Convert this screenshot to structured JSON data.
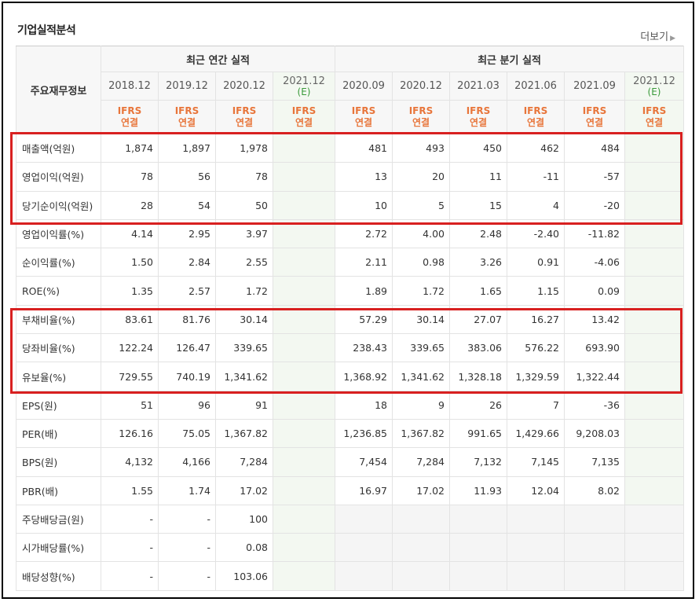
{
  "section": {
    "title": "기업실적분석",
    "more_label": "더보기"
  },
  "header": {
    "row_label": "주요재무정보",
    "group_annual": "최근 연간 실적",
    "group_quarter": "최근 분기 실적",
    "periods": [
      "2018.12",
      "2019.12",
      "2020.12",
      "2021.12",
      "2020.09",
      "2020.12",
      "2021.03",
      "2021.06",
      "2021.09",
      "2021.12"
    ],
    "estimate_mark": "(E)",
    "basis_line1": "IFRS",
    "basis_line2": "연결"
  },
  "rows": [
    {
      "label": "매출액(억원)",
      "annual": [
        "1,874",
        "1,897",
        "1,978",
        ""
      ],
      "quarter": [
        "481",
        "493",
        "450",
        "462",
        "484",
        ""
      ]
    },
    {
      "label": "영업이익(억원)",
      "annual": [
        "78",
        "56",
        "78",
        ""
      ],
      "quarter": [
        "13",
        "20",
        "11",
        "-11",
        "-57",
        ""
      ]
    },
    {
      "label": "당기순이익(억원)",
      "annual": [
        "28",
        "54",
        "50",
        ""
      ],
      "quarter": [
        "10",
        "5",
        "15",
        "4",
        "-20",
        ""
      ]
    },
    {
      "label": "영업이익률(%)",
      "annual": [
        "4.14",
        "2.95",
        "3.97",
        ""
      ],
      "quarter": [
        "2.72",
        "4.00",
        "2.48",
        "-2.40",
        "-11.82",
        ""
      ]
    },
    {
      "label": "순이익률(%)",
      "annual": [
        "1.50",
        "2.84",
        "2.55",
        ""
      ],
      "quarter": [
        "2.11",
        "0.98",
        "3.26",
        "0.91",
        "-4.06",
        ""
      ]
    },
    {
      "label": "ROE(%)",
      "annual": [
        "1.35",
        "2.57",
        "1.72",
        ""
      ],
      "quarter": [
        "1.89",
        "1.72",
        "1.65",
        "1.15",
        "0.09",
        ""
      ]
    },
    {
      "label": "부채비율(%)",
      "annual": [
        "83.61",
        "81.76",
        "30.14",
        ""
      ],
      "quarter": [
        "57.29",
        "30.14",
        "27.07",
        "16.27",
        "13.42",
        ""
      ]
    },
    {
      "label": "당좌비율(%)",
      "annual": [
        "122.24",
        "126.47",
        "339.65",
        ""
      ],
      "quarter": [
        "238.43",
        "339.65",
        "383.06",
        "576.22",
        "693.90",
        ""
      ]
    },
    {
      "label": "유보율(%)",
      "annual": [
        "729.55",
        "740.19",
        "1,341.62",
        ""
      ],
      "quarter": [
        "1,368.92",
        "1,341.62",
        "1,328.18",
        "1,329.59",
        "1,322.44",
        ""
      ]
    },
    {
      "label": "EPS(원)",
      "annual": [
        "51",
        "96",
        "91",
        ""
      ],
      "quarter": [
        "18",
        "9",
        "26",
        "7",
        "-36",
        ""
      ]
    },
    {
      "label": "PER(배)",
      "annual": [
        "126.16",
        "75.05",
        "1,367.82",
        ""
      ],
      "quarter": [
        "1,236.85",
        "1,367.82",
        "991.65",
        "1,429.66",
        "9,208.03",
        ""
      ]
    },
    {
      "label": "BPS(원)",
      "annual": [
        "4,132",
        "4,166",
        "7,284",
        ""
      ],
      "quarter": [
        "7,454",
        "7,284",
        "7,132",
        "7,145",
        "7,135",
        ""
      ]
    },
    {
      "label": "PBR(배)",
      "annual": [
        "1.55",
        "1.74",
        "17.02",
        ""
      ],
      "quarter": [
        "16.97",
        "17.02",
        "11.93",
        "12.04",
        "8.02",
        ""
      ]
    },
    {
      "label": "주당배당금(원)",
      "annual": [
        "-",
        "-",
        "100",
        ""
      ],
      "quarter": null
    },
    {
      "label": "시가배당률(%)",
      "annual": [
        "-",
        "-",
        "0.08",
        ""
      ],
      "quarter": null
    },
    {
      "label": "배당성향(%)",
      "annual": [
        "-",
        "-",
        "103.06",
        ""
      ],
      "quarter": null
    }
  ],
  "colors": {
    "basis_text": "#e8753a",
    "negative": "#cc0000",
    "estimate_bg": "#f3f8f1",
    "highlight_box": "#d82020"
  }
}
